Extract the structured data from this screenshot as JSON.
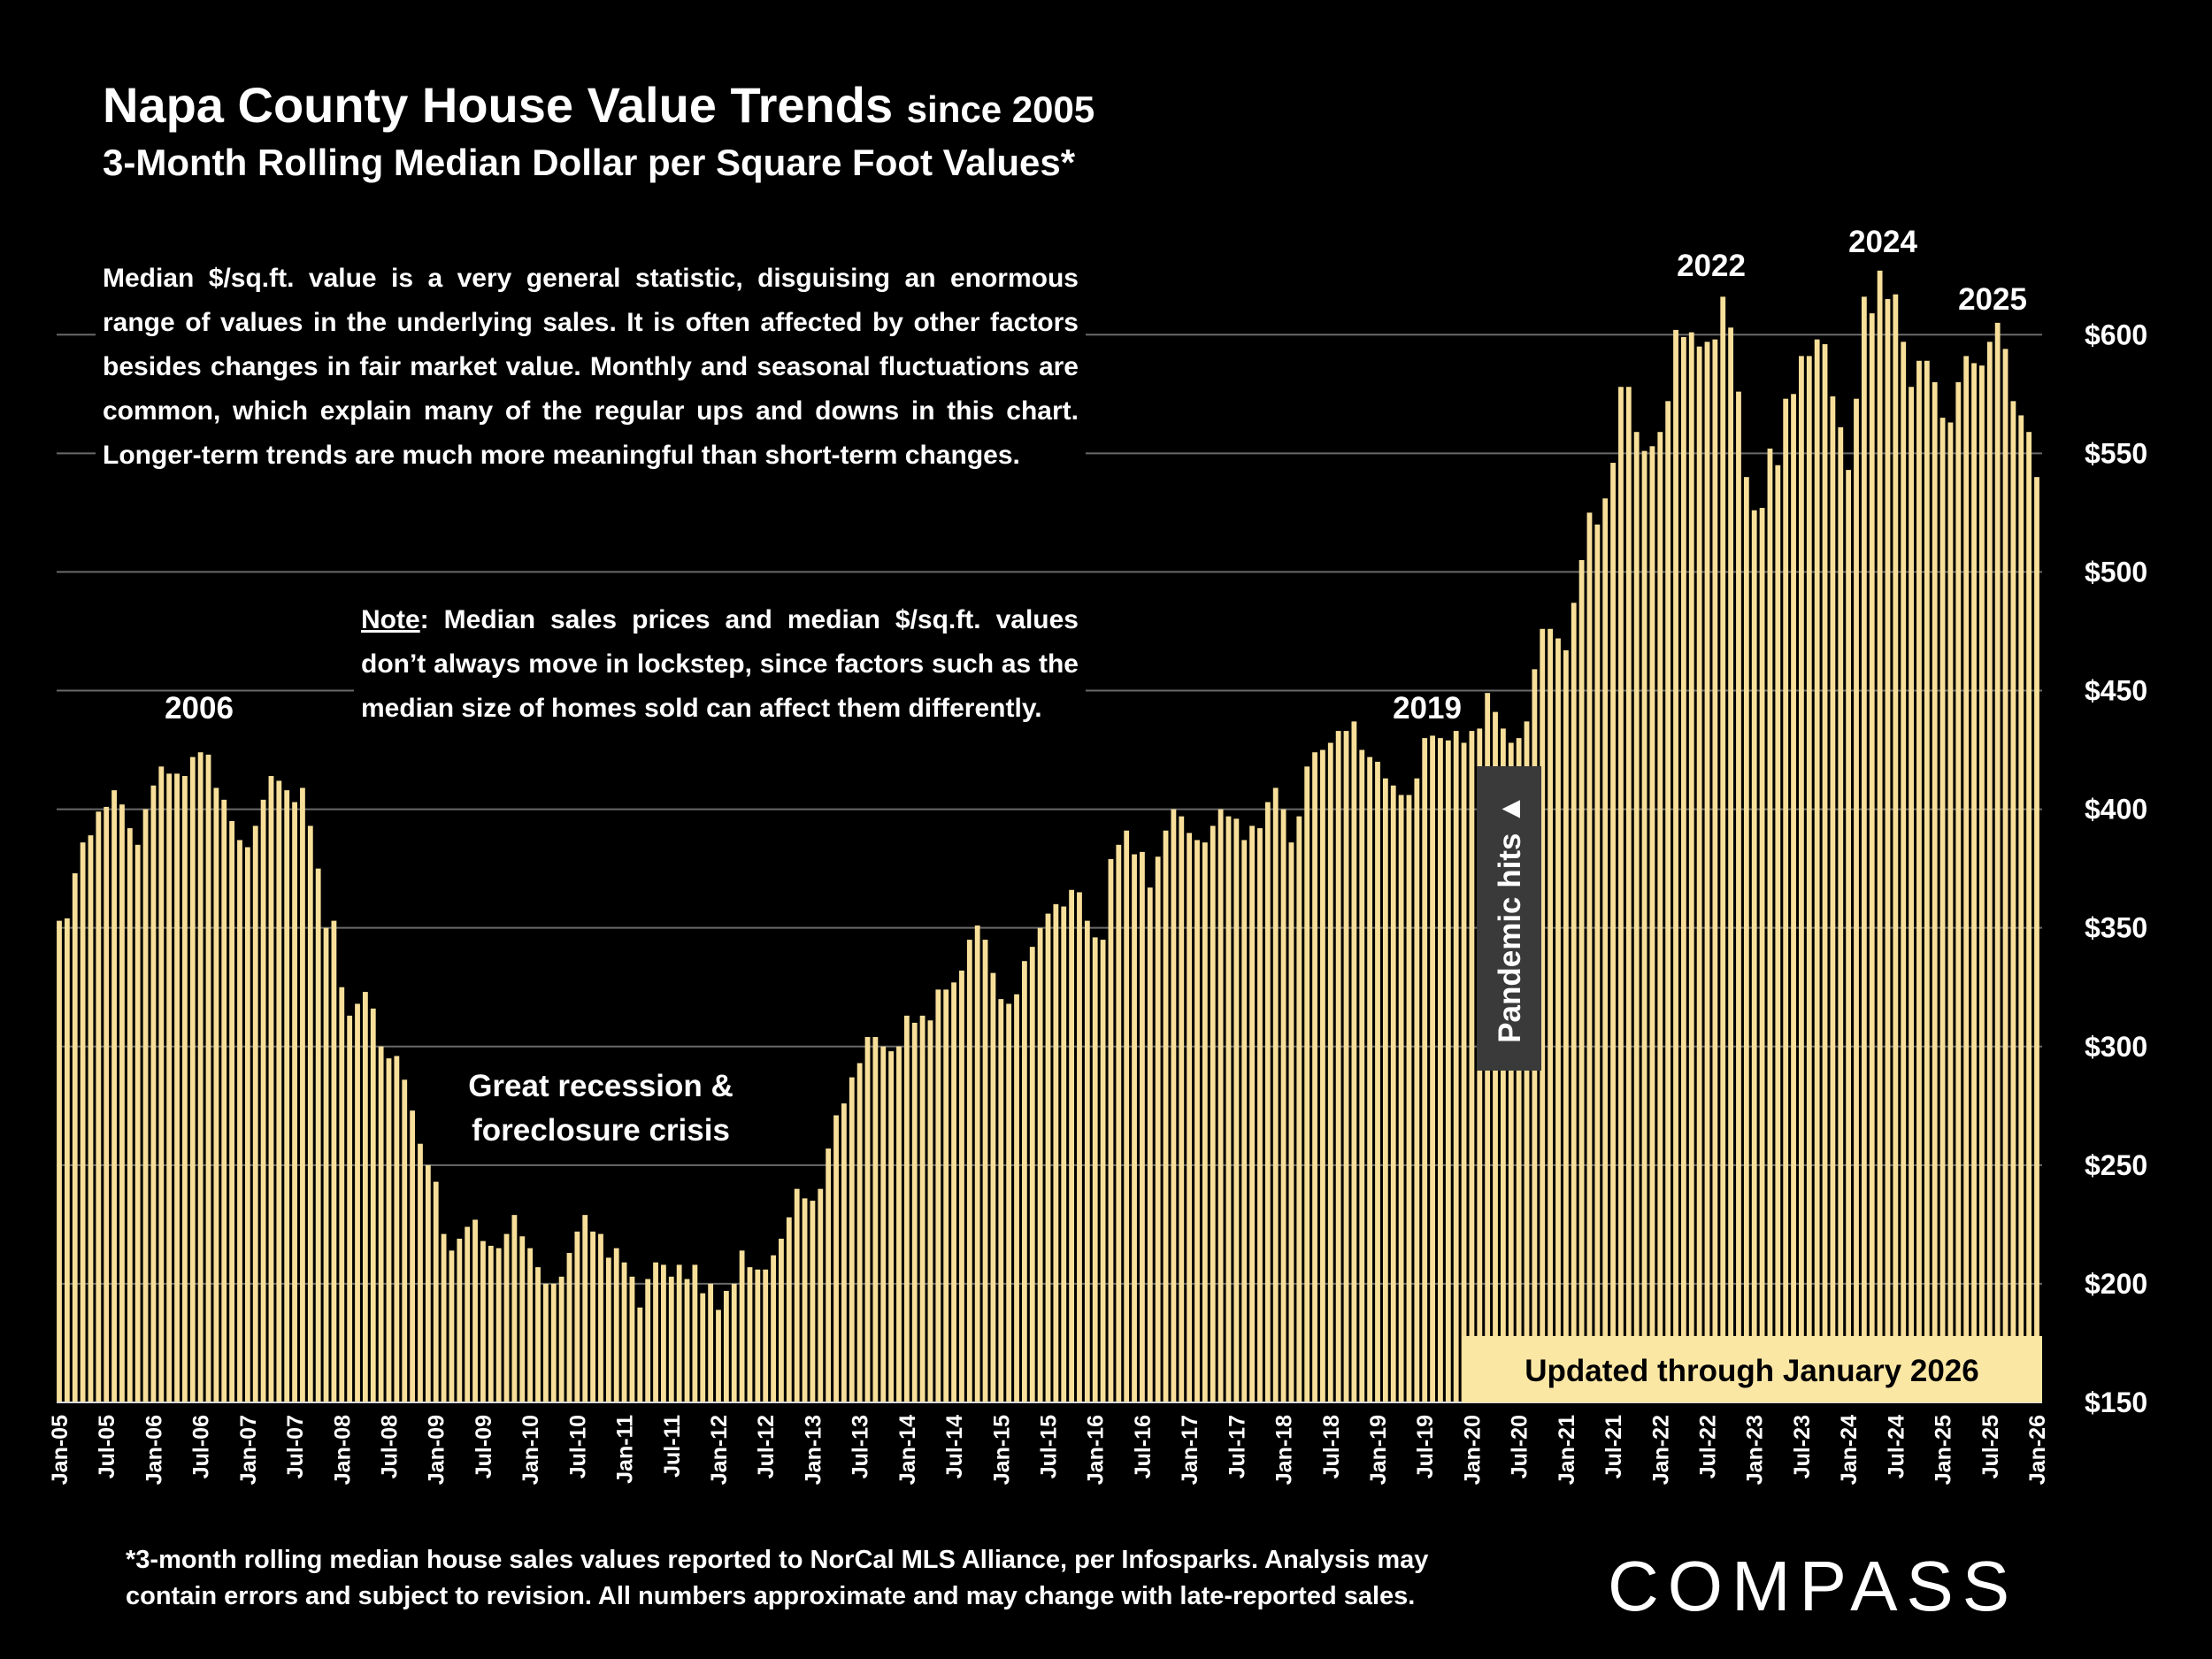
{
  "chart_data": {
    "type": "bar",
    "title": "Napa County House Value Trends",
    "title_suffix": "since 2005",
    "subtitle": "3-Month Rolling Median Dollar per Square Foot Values*",
    "intro": "Median $/sq.ft. value is a very general statistic, disguising an enormous range of values in the underlying sales. It is often affected by other factors besides changes in fair market value. Monthly and seasonal fluctuations are common, which explain many of the regular ups and downs in this chart. Longer-term trends are much more meaningful than short-term changes.",
    "note_label": "Note",
    "note_text": ": Median sales prices and median $/sq.ft. values don’t always move in lockstep, since factors such as the median size of homes sold can affect them differently.",
    "year_labels": [
      "2006",
      "2019",
      "2022",
      "2024",
      "2025"
    ],
    "recession_label": [
      "Great recession &",
      "foreclosure crisis"
    ],
    "pandemic_label": "Pandemic hits ▲",
    "updated_label": "Updated through January 2026",
    "footnote": [
      "*3-month rolling median house sales values reported to NorCal MLS Alliance, per Infosparks. Analysis may",
      "contain errors and subject to revision. All numbers approximate and may change with late-reported sales."
    ],
    "logo": "COMPASS",
    "color": "#f7df9a",
    "grid": true,
    "ylim": [
      150,
      640
    ],
    "yticks": [
      {
        "value": 150,
        "label": "$150"
      },
      {
        "value": 200,
        "label": "$200"
      },
      {
        "value": 250,
        "label": "$250"
      },
      {
        "value": 300,
        "label": "$300"
      },
      {
        "value": 350,
        "label": "$350"
      },
      {
        "value": 400,
        "label": "$400"
      },
      {
        "value": 450,
        "label": "$450"
      },
      {
        "value": 500,
        "label": "$500"
      },
      {
        "value": 550,
        "label": "$550"
      },
      {
        "value": 600,
        "label": "$600"
      }
    ],
    "categories": [
      "Jan-05",
      null,
      null,
      null,
      null,
      null,
      "Jul-05",
      null,
      null,
      null,
      null,
      null,
      "Jan-06",
      null,
      null,
      null,
      null,
      null,
      "Jul-06",
      null,
      null,
      null,
      null,
      null,
      "Jan-07",
      null,
      null,
      null,
      null,
      null,
      "Jul-07",
      null,
      null,
      null,
      null,
      null,
      "Jan-08",
      null,
      null,
      null,
      null,
      null,
      "Jul-08",
      null,
      null,
      null,
      null,
      null,
      "Jan-09",
      null,
      null,
      null,
      null,
      null,
      "Jul-09",
      null,
      null,
      null,
      null,
      null,
      "Jan-10",
      null,
      null,
      null,
      null,
      null,
      "Jul-10",
      null,
      null,
      null,
      null,
      null,
      "Jan-11",
      null,
      null,
      null,
      null,
      null,
      "Jul-11",
      null,
      null,
      null,
      null,
      null,
      "Jan-12",
      null,
      null,
      null,
      null,
      null,
      "Jul-12",
      null,
      null,
      null,
      null,
      null,
      "Jan-13",
      null,
      null,
      null,
      null,
      null,
      "Jul-13",
      null,
      null,
      null,
      null,
      null,
      "Jan-14",
      null,
      null,
      null,
      null,
      null,
      "Jul-14",
      null,
      null,
      null,
      null,
      null,
      "Jan-15",
      null,
      null,
      null,
      null,
      null,
      "Jul-15",
      null,
      null,
      null,
      null,
      null,
      "Jan-16",
      null,
      null,
      null,
      null,
      null,
      "Jul-16",
      null,
      null,
      null,
      null,
      null,
      "Jan-17",
      null,
      null,
      null,
      null,
      null,
      "Jul-17",
      null,
      null,
      null,
      null,
      null,
      "Jan-18",
      null,
      null,
      null,
      null,
      null,
      "Jul-18",
      null,
      null,
      null,
      null,
      null,
      "Jan-19",
      null,
      null,
      null,
      null,
      null,
      "Jul-19",
      null,
      null,
      null,
      null,
      null,
      "Jan-20",
      null,
      null,
      null,
      null,
      null,
      "Jul-20",
      null,
      null,
      null,
      null,
      null,
      "Jan-21",
      null,
      null,
      null,
      null,
      null,
      "Jul-21",
      null,
      null,
      null,
      null,
      null,
      "Jan-22",
      null,
      null,
      null,
      null,
      null,
      "Jul-22",
      null,
      null,
      null,
      null,
      null,
      "Jan-23",
      null,
      null,
      null,
      null,
      null,
      "Jul-23",
      null,
      null,
      null,
      null,
      null,
      "Jan-24",
      null,
      null,
      null,
      null,
      null,
      "Jul-24",
      null,
      null,
      null,
      null,
      null,
      "Jan-25",
      null,
      null,
      null,
      null,
      null,
      "Jul-25",
      null,
      null,
      null,
      null,
      null,
      "Jan-26"
    ],
    "values": [
      353,
      354,
      373,
      386,
      389,
      399,
      401,
      408,
      402,
      392,
      385,
      400,
      410,
      418,
      415,
      415,
      414,
      422,
      424,
      423,
      409,
      404,
      395,
      387,
      384,
      393,
      404,
      414,
      412,
      408,
      403,
      409,
      393,
      375,
      350,
      353,
      325,
      313,
      318,
      323,
      316,
      300,
      295,
      296,
      286,
      273,
      259,
      250,
      243,
      221,
      214,
      219,
      224,
      227,
      218,
      216,
      215,
      221,
      229,
      220,
      215,
      207,
      200,
      200,
      203,
      213,
      222,
      229,
      222,
      221,
      211,
      215,
      209,
      203,
      190,
      202,
      209,
      208,
      203,
      208,
      202,
      208,
      196,
      200,
      189,
      197,
      200,
      214,
      207,
      206,
      206,
      212,
      219,
      228,
      240,
      236,
      235,
      240,
      257,
      271,
      276,
      287,
      293,
      304,
      304,
      300,
      298,
      300,
      313,
      310,
      313,
      311,
      324,
      324,
      327,
      332,
      345,
      351,
      345,
      331,
      320,
      318,
      322,
      336,
      342,
      350,
      356,
      360,
      359,
      366,
      365,
      353,
      346,
      345,
      379,
      385,
      391,
      381,
      382,
      367,
      380,
      391,
      400,
      397,
      390,
      387,
      386,
      393,
      400,
      397,
      396,
      387,
      393,
      392,
      403,
      409,
      400,
      386,
      397,
      418,
      424,
      425,
      428,
      433,
      433,
      437,
      425,
      422,
      420,
      413,
      410,
      406,
      406,
      413,
      430,
      431,
      430,
      429,
      433,
      428,
      433,
      434,
      449,
      441,
      434,
      428,
      430,
      437,
      459,
      476,
      476,
      472,
      467,
      487,
      505,
      525,
      520,
      531,
      546,
      578,
      578,
      559,
      551,
      553,
      559,
      572,
      602,
      599,
      601,
      595,
      597,
      598,
      616,
      603,
      576,
      540,
      526,
      527,
      552,
      545,
      573,
      575,
      591,
      591,
      598,
      596,
      574,
      561,
      543,
      573,
      616,
      609,
      627,
      615,
      617,
      597,
      578,
      589,
      589,
      580,
      565,
      563,
      580,
      591,
      588,
      587,
      597,
      605,
      594,
      572,
      566,
      559,
      540
    ]
  }
}
